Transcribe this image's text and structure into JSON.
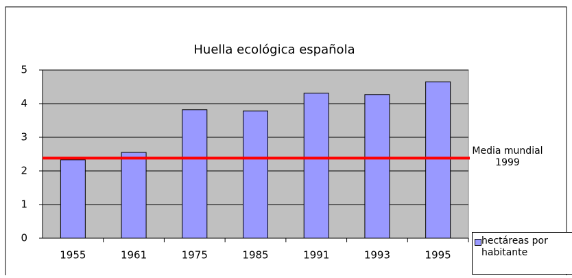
{
  "chart_data": {
    "type": "bar",
    "title": "Huella ecológica española",
    "categories": [
      "1955",
      "1961",
      "1975",
      "1985",
      "1991",
      "1993",
      "1995"
    ],
    "series": [
      {
        "name": "hectáreas por habitante",
        "color": "#9999ff",
        "values": [
          2.33,
          2.55,
          3.82,
          3.78,
          4.31,
          4.27,
          4.65
        ]
      }
    ],
    "ylim": [
      0,
      5
    ],
    "yticks": [
      0,
      1,
      2,
      3,
      4,
      5
    ],
    "grid": true,
    "reference_line": {
      "value": 2.38,
      "label": "Media mundial 1999",
      "color": "#ff0000"
    },
    "legend": "right"
  }
}
